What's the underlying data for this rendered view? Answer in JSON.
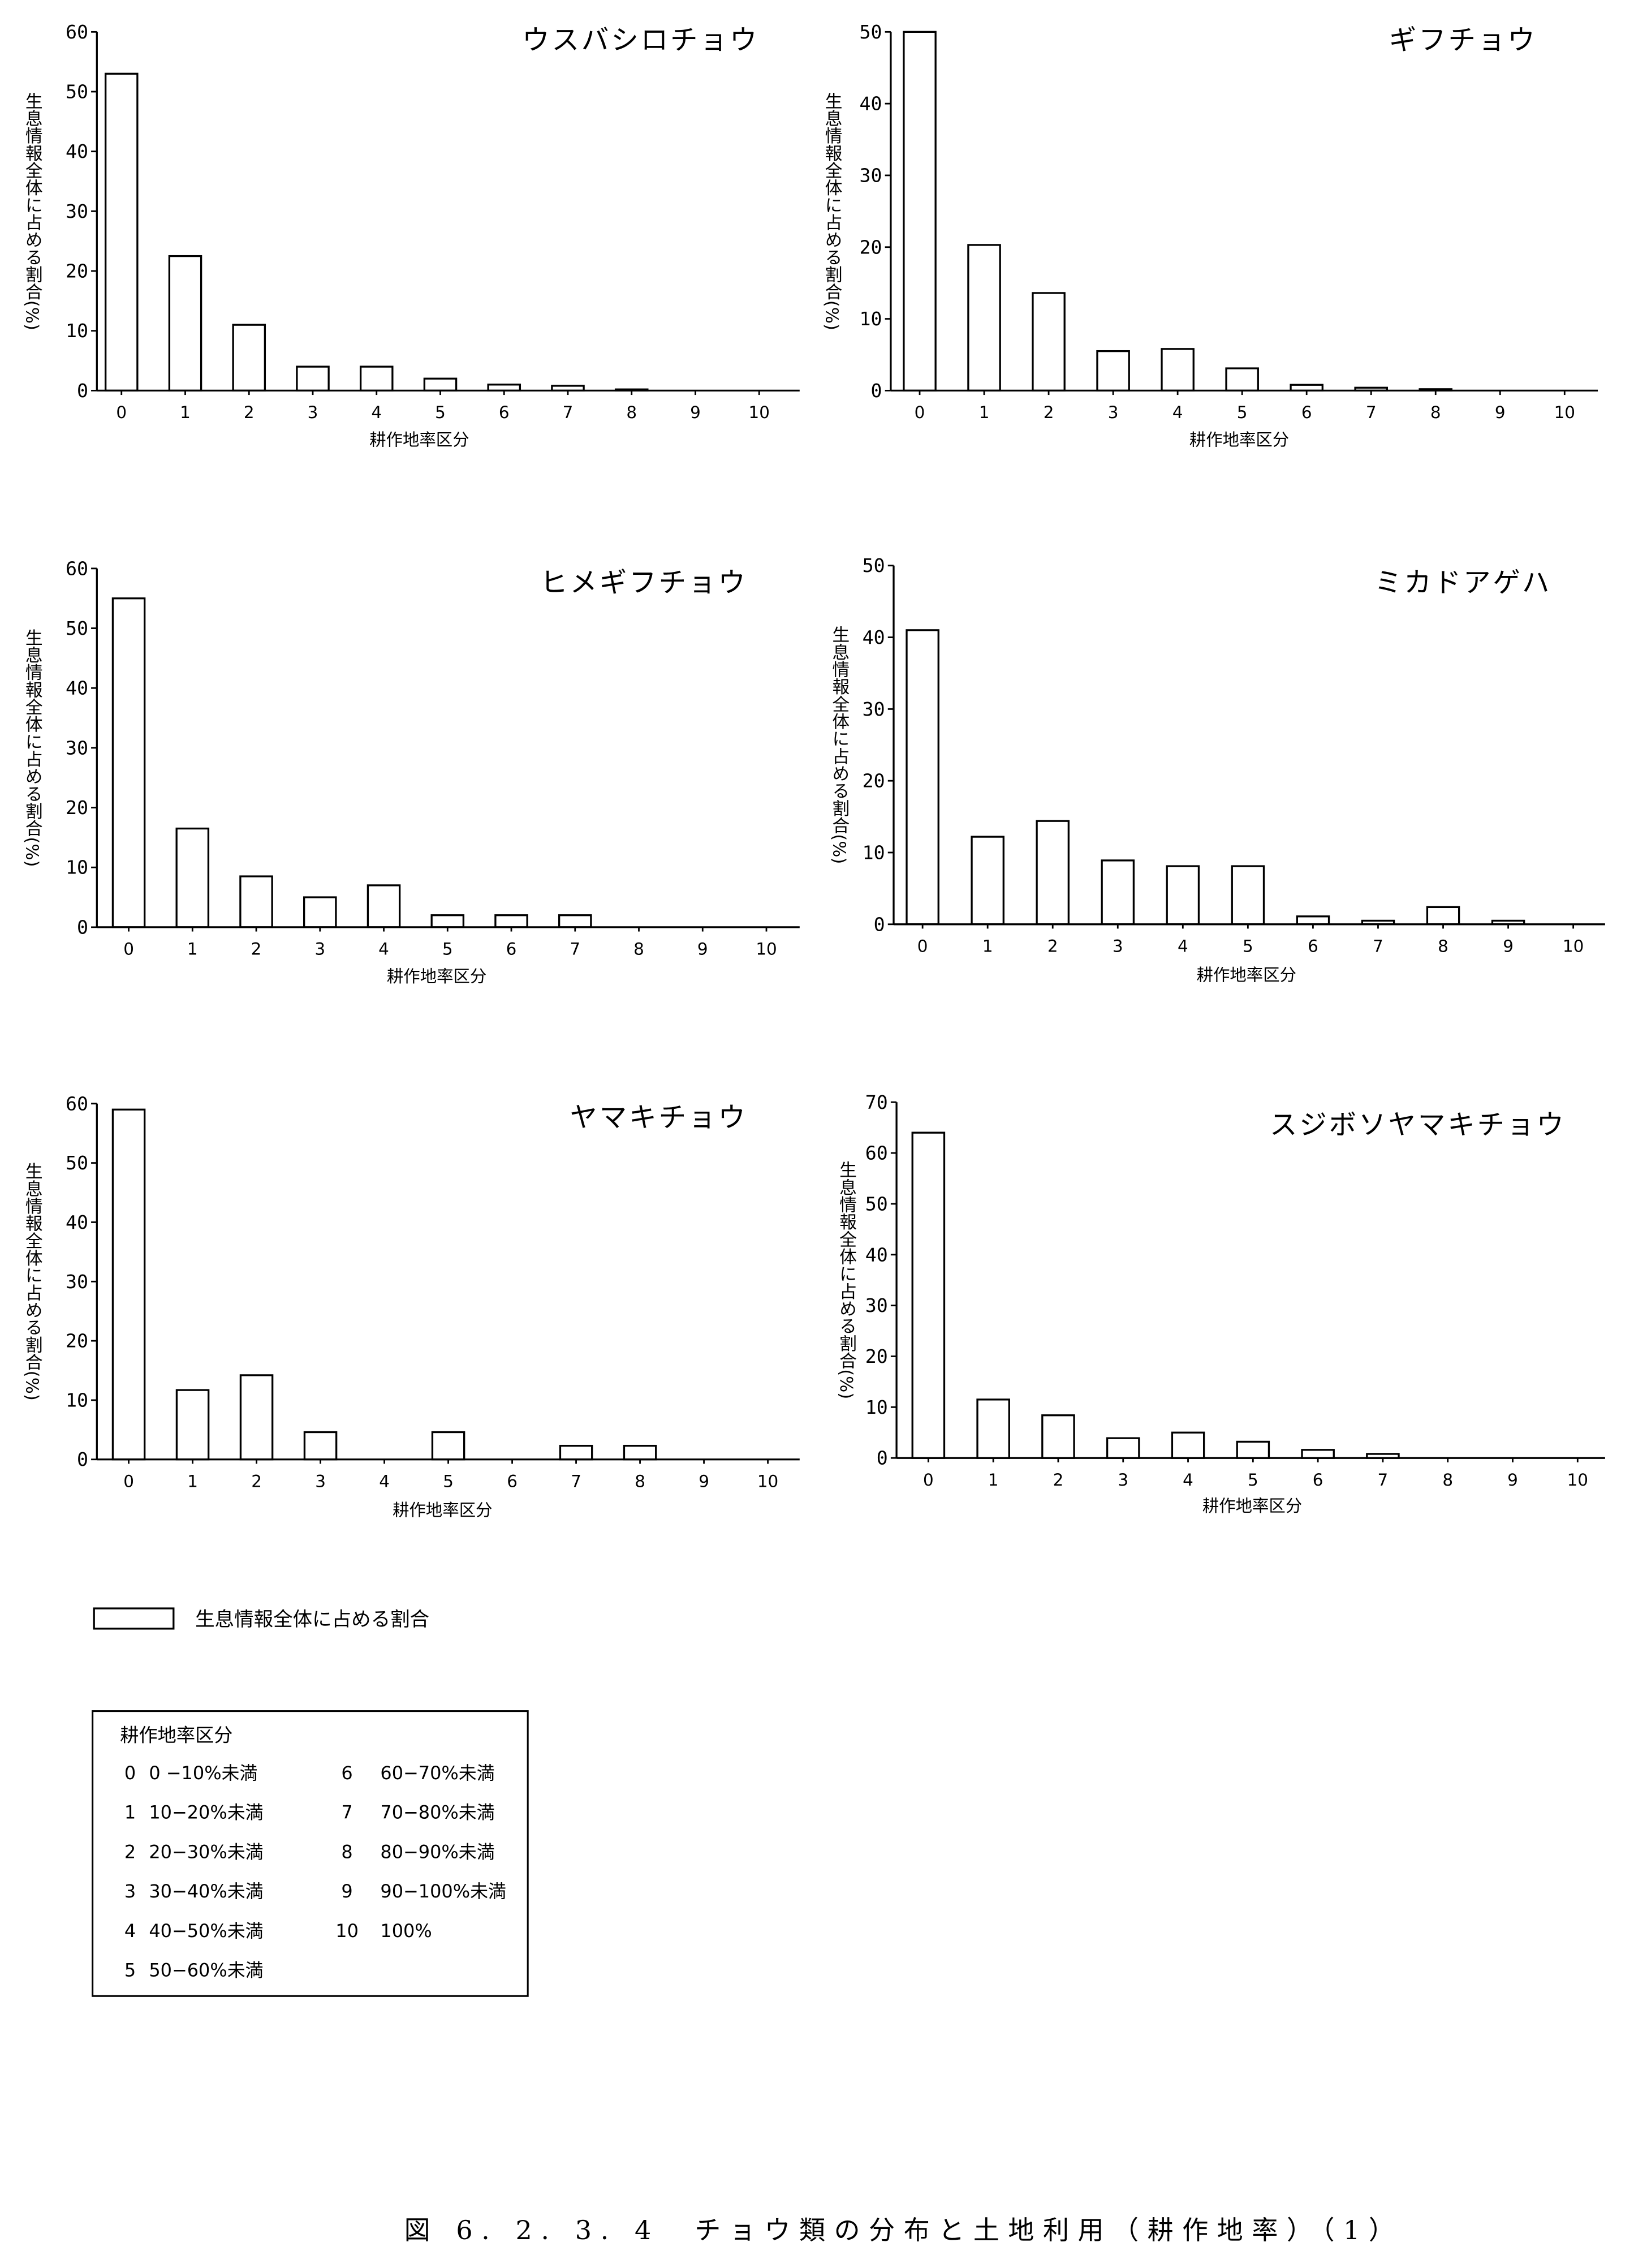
{
  "chart_data": [
    {
      "type": "bar",
      "title": "ウスバシロチョウ",
      "xlabel": "耕作地率区分",
      "ylabel": "生息情報全体に占める割合(%)",
      "categories": [
        "0",
        "1",
        "2",
        "3",
        "4",
        "5",
        "6",
        "7",
        "8",
        "9",
        "10"
      ],
      "values": [
        53,
        22.5,
        11,
        4,
        4,
        2,
        1,
        0.8,
        0.2,
        0,
        0
      ],
      "ylim": [
        0,
        60
      ],
      "yticks": [
        0,
        10,
        20,
        30,
        40,
        50,
        60
      ]
    },
    {
      "type": "bar",
      "title": "ギフチョウ",
      "xlabel": "耕作地率区分",
      "ylabel": "生息情報全体に占める割合(%)",
      "categories": [
        "0",
        "1",
        "2",
        "3",
        "4",
        "5",
        "6",
        "7",
        "8",
        "9",
        "10"
      ],
      "values": [
        50,
        20.3,
        13.6,
        5.5,
        5.8,
        3.1,
        0.8,
        0.4,
        0.2,
        0,
        0
      ],
      "ylim": [
        0,
        50
      ],
      "yticks": [
        0,
        10,
        20,
        30,
        40,
        50
      ]
    },
    {
      "type": "bar",
      "title": "ヒメギフチョウ",
      "xlabel": "耕作地率区分",
      "ylabel": "生息情報全体に占める割合(%)",
      "categories": [
        "0",
        "1",
        "2",
        "3",
        "4",
        "5",
        "6",
        "7",
        "8",
        "9",
        "10"
      ],
      "values": [
        55,
        16.5,
        8.5,
        5,
        7,
        2,
        2,
        2,
        0,
        0,
        0
      ],
      "ylim": [
        0,
        60
      ],
      "yticks": [
        0,
        10,
        20,
        30,
        40,
        50,
        60
      ]
    },
    {
      "type": "bar",
      "title": "ミカドアゲハ",
      "xlabel": "耕作地率区分",
      "ylabel": "生息情報全体に占める割合(%)",
      "categories": [
        "0",
        "1",
        "2",
        "3",
        "4",
        "5",
        "6",
        "7",
        "8",
        "9",
        "10"
      ],
      "values": [
        41,
        12.2,
        14.4,
        8.9,
        8.1,
        8.1,
        1.1,
        0.5,
        2.4,
        0.5,
        0
      ],
      "ylim": [
        0,
        50
      ],
      "yticks": [
        0,
        10,
        20,
        30,
        40,
        50
      ]
    },
    {
      "type": "bar",
      "title": "ヤマキチョウ",
      "xlabel": "耕作地率区分",
      "ylabel": "生息情報全体に占める割合(%)",
      "categories": [
        "0",
        "1",
        "2",
        "3",
        "4",
        "5",
        "6",
        "7",
        "8",
        "9",
        "10"
      ],
      "values": [
        59,
        11.7,
        14.2,
        4.6,
        0,
        4.6,
        0,
        2.3,
        2.3,
        0,
        0
      ],
      "ylim": [
        0,
        60
      ],
      "yticks": [
        0,
        10,
        20,
        30,
        40,
        50,
        60
      ]
    },
    {
      "type": "bar",
      "title": "スジボソヤマキチョウ",
      "xlabel": "耕作地率区分",
      "ylabel": "生息情報全体に占める割合(%)",
      "categories": [
        "0",
        "1",
        "2",
        "3",
        "4",
        "5",
        "6",
        "7",
        "8",
        "9",
        "10"
      ],
      "values": [
        64,
        11.5,
        8.4,
        3.9,
        5,
        3.2,
        1.6,
        0.8,
        0,
        0,
        0
      ],
      "ylim": [
        0,
        70
      ],
      "yticks": [
        0,
        10,
        20,
        30,
        40,
        50,
        60,
        70
      ]
    }
  ],
  "legend": {
    "label": "生息情報全体に占める割合"
  },
  "category_key": {
    "title": "耕作地率区分",
    "items": [
      {
        "code": "0",
        "range": "0 −10%未満"
      },
      {
        "code": "1",
        "range": "10−20%未満"
      },
      {
        "code": "2",
        "range": "20−30%未満"
      },
      {
        "code": "3",
        "range": "30−40%未満"
      },
      {
        "code": "4",
        "range": "40−50%未満"
      },
      {
        "code": "5",
        "range": "50−60%未満"
      },
      {
        "code": "6",
        "range": "60−70%未満"
      },
      {
        "code": "7",
        "range": "70−80%未満"
      },
      {
        "code": "8",
        "range": "80−90%未満"
      },
      {
        "code": "9",
        "range": "90−100%未満"
      },
      {
        "code": "10",
        "range": "100%"
      }
    ]
  },
  "caption": "図 6. 2. 3. 4　チョウ類の分布と土地利用（耕作地率）（1）",
  "colors": {
    "bar_fill": "#ffffff",
    "line": "#000000",
    "background": "#ffffff"
  }
}
